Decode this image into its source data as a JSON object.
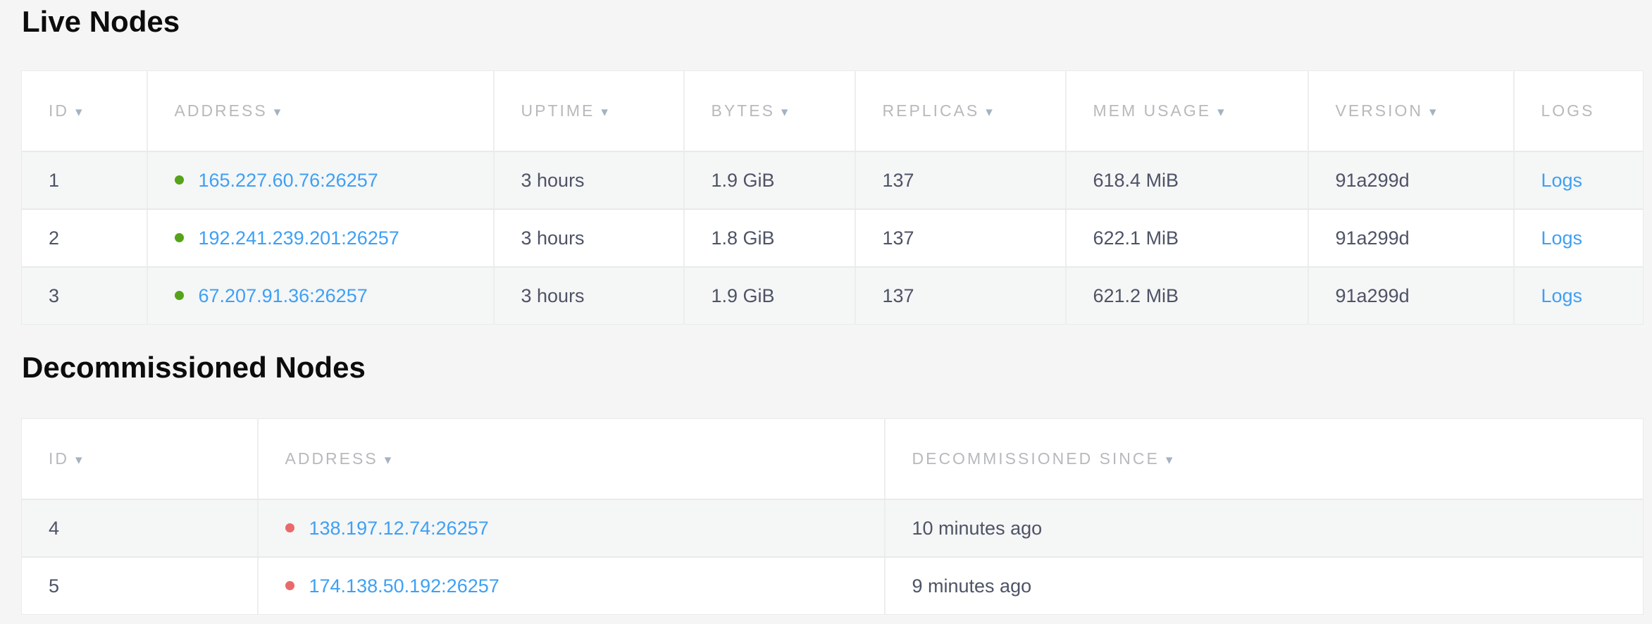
{
  "colors": {
    "link_blue": "#3ea0f4",
    "live_green": "#56a31a",
    "decommissioned_red": "#e96a6b"
  },
  "live_table": {
    "title": "Live Nodes",
    "columns": [
      {
        "label": "ID",
        "arrow": "▾"
      },
      {
        "label": "ADDRESS",
        "arrow": "▾"
      },
      {
        "label": "UPTIME",
        "arrow": "▾"
      },
      {
        "label": "BYTES",
        "arrow": "▾"
      },
      {
        "label": "REPLICAS",
        "arrow": "▾"
      },
      {
        "label": "MEM USAGE",
        "arrow": "▾"
      },
      {
        "label": "VERSION",
        "arrow": "▾"
      },
      {
        "label": "LOGS",
        "arrow": ""
      }
    ],
    "rows": [
      {
        "id": "1",
        "status": "live",
        "address": "165.227.60.76:26257",
        "uptime": "3 hours",
        "bytes": "1.9 GiB",
        "replicas": "137",
        "mem_usage": "618.4 MiB",
        "version": "91a299d",
        "logs_label": "Logs"
      },
      {
        "id": "2",
        "status": "live",
        "address": "192.241.239.201:26257",
        "uptime": "3 hours",
        "bytes": "1.8 GiB",
        "replicas": "137",
        "mem_usage": "622.1 MiB",
        "version": "91a299d",
        "logs_label": "Logs"
      },
      {
        "id": "3",
        "status": "live",
        "address": "67.207.91.36:26257",
        "uptime": "3 hours",
        "bytes": "1.9 GiB",
        "replicas": "137",
        "mem_usage": "621.2 MiB",
        "version": "91a299d",
        "logs_label": "Logs"
      }
    ]
  },
  "decommissioned_table": {
    "title": "Decommissioned Nodes",
    "columns": [
      {
        "label": "ID",
        "arrow": "▾"
      },
      {
        "label": "ADDRESS",
        "arrow": "▾"
      },
      {
        "label": "DECOMMISSIONED SINCE",
        "arrow": "▾"
      }
    ],
    "rows": [
      {
        "id": "4",
        "status": "decommissioned",
        "address": "138.197.12.74:26257",
        "since": "10 minutes ago"
      },
      {
        "id": "5",
        "status": "decommissioned",
        "address": "174.138.50.192:26257",
        "since": "9 minutes ago"
      }
    ]
  }
}
